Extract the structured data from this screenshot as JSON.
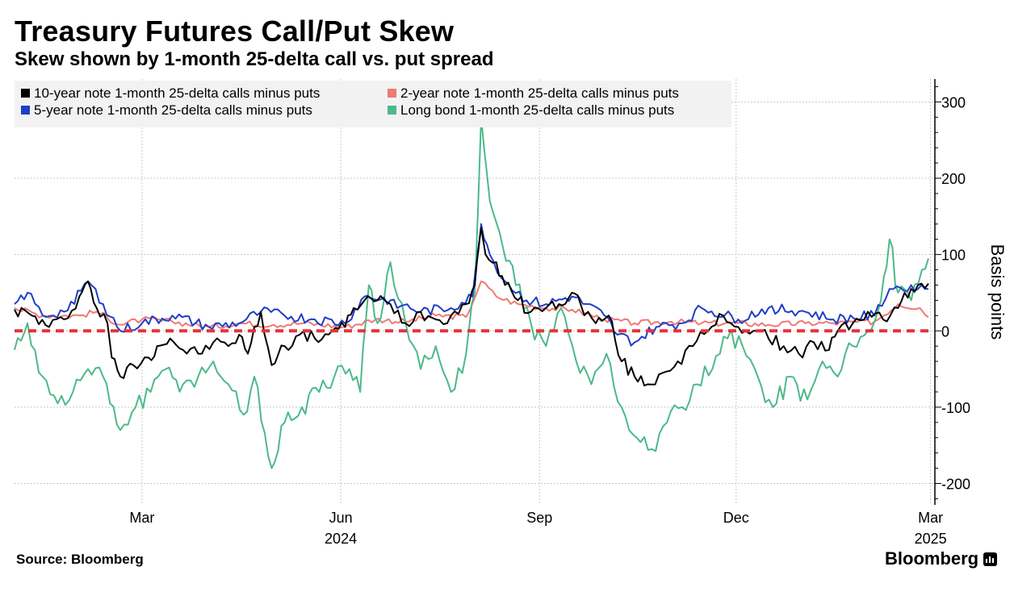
{
  "title": "Treasury Futures Call/Put Skew",
  "subtitle": "Skew shown by 1-month 25-delta call vs. put spread",
  "source": "Source: Bloomberg",
  "brand": "Bloomberg",
  "colors": {
    "ten_year": "#000000",
    "two_year": "#ee7a74",
    "five_year": "#1f3fc4",
    "long_bond": "#4cb98a",
    "zero_line": "#e5323a",
    "legend_bg": "#f2f2f2",
    "grid": "#c8c8c8"
  },
  "chart_data": {
    "type": "line",
    "x_start": "2024-01-02",
    "x_end": "2025-02-28",
    "frequency": "business days (interpolated from readings)",
    "ylim": [
      -228,
      330
    ],
    "yticks": [
      -200,
      -100,
      0,
      100,
      200,
      300
    ],
    "ylabel": "Basis points",
    "x_ticks": [
      {
        "date": "2024-03-01",
        "label": "Mar"
      },
      {
        "date": "2024-06-01",
        "label": "Jun"
      },
      {
        "date": "2024-09-01",
        "label": "Sep"
      },
      {
        "date": "2024-12-01",
        "label": "Dec"
      },
      {
        "date": "2025-03-01",
        "label": "Mar"
      }
    ],
    "x_year_labels": [
      {
        "date": "2024-06-01",
        "label": "2024"
      },
      {
        "date": "2025-03-01",
        "label": "2025"
      }
    ],
    "grid": true,
    "legend_position": "top-left",
    "reference_line": {
      "y": 0,
      "style": "dashed"
    },
    "series": [
      {
        "name": "10-year note 1-month 25-delta calls minus puts",
        "color_key": "ten_year",
        "points": [
          [
            "2024-01-02",
            28
          ],
          [
            "2024-01-10",
            20
          ],
          [
            "2024-01-18",
            5
          ],
          [
            "2024-01-25",
            15
          ],
          [
            "2024-02-01",
            45
          ],
          [
            "2024-02-05",
            65
          ],
          [
            "2024-02-09",
            30
          ],
          [
            "2024-02-14",
            10
          ],
          [
            "2024-02-16",
            -35
          ],
          [
            "2024-02-20",
            -60
          ],
          [
            "2024-02-26",
            -45
          ],
          [
            "2024-03-04",
            -35
          ],
          [
            "2024-03-08",
            -20
          ],
          [
            "2024-03-14",
            -10
          ],
          [
            "2024-03-20",
            -25
          ],
          [
            "2024-03-27",
            -30
          ],
          [
            "2024-04-03",
            -15
          ],
          [
            "2024-04-10",
            -20
          ],
          [
            "2024-04-15",
            -5
          ],
          [
            "2024-04-19",
            -30
          ],
          [
            "2024-04-25",
            25
          ],
          [
            "2024-04-30",
            -45
          ],
          [
            "2024-05-06",
            -20
          ],
          [
            "2024-05-13",
            -5
          ],
          [
            "2024-05-20",
            -10
          ],
          [
            "2024-05-28",
            0
          ],
          [
            "2024-06-03",
            5
          ],
          [
            "2024-06-07",
            30
          ],
          [
            "2024-06-12",
            40
          ],
          [
            "2024-06-18",
            40
          ],
          [
            "2024-06-24",
            35
          ],
          [
            "2024-07-01",
            10
          ],
          [
            "2024-07-08",
            25
          ],
          [
            "2024-07-15",
            15
          ],
          [
            "2024-07-22",
            20
          ],
          [
            "2024-07-29",
            35
          ],
          [
            "2024-08-02",
            60
          ],
          [
            "2024-08-05",
            135
          ],
          [
            "2024-08-07",
            100
          ],
          [
            "2024-08-12",
            90
          ],
          [
            "2024-08-16",
            60
          ],
          [
            "2024-08-22",
            40
          ],
          [
            "2024-08-28",
            25
          ],
          [
            "2024-09-04",
            30
          ],
          [
            "2024-09-10",
            35
          ],
          [
            "2024-09-16",
            50
          ],
          [
            "2024-09-20",
            35
          ],
          [
            "2024-09-27",
            10
          ],
          [
            "2024-10-03",
            20
          ],
          [
            "2024-10-09",
            -40
          ],
          [
            "2024-10-15",
            -60
          ],
          [
            "2024-10-21",
            -70
          ],
          [
            "2024-10-28",
            -55
          ],
          [
            "2024-11-04",
            -40
          ],
          [
            "2024-11-11",
            -20
          ],
          [
            "2024-11-18",
            0
          ],
          [
            "2024-11-25",
            20
          ],
          [
            "2024-12-02",
            5
          ],
          [
            "2024-12-09",
            0
          ],
          [
            "2024-12-16",
            -10
          ],
          [
            "2024-12-23",
            -20
          ],
          [
            "2024-12-30",
            -30
          ],
          [
            "2025-01-06",
            -15
          ],
          [
            "2025-01-13",
            -25
          ],
          [
            "2025-01-17",
            0
          ],
          [
            "2025-01-24",
            10
          ],
          [
            "2025-01-31",
            25
          ],
          [
            "2025-02-07",
            15
          ],
          [
            "2025-02-14",
            30
          ],
          [
            "2025-02-20",
            55
          ],
          [
            "2025-02-28",
            62
          ]
        ]
      },
      {
        "name": "2-year note 1-month 25-delta calls minus puts",
        "color_key": "two_year",
        "points": [
          [
            "2024-01-02",
            30
          ],
          [
            "2024-01-15",
            20
          ],
          [
            "2024-02-01",
            20
          ],
          [
            "2024-02-09",
            25
          ],
          [
            "2024-02-20",
            8
          ],
          [
            "2024-03-01",
            15
          ],
          [
            "2024-03-15",
            12
          ],
          [
            "2024-04-01",
            5
          ],
          [
            "2024-04-15",
            10
          ],
          [
            "2024-05-01",
            8
          ],
          [
            "2024-05-15",
            10
          ],
          [
            "2024-06-03",
            5
          ],
          [
            "2024-06-17",
            15
          ],
          [
            "2024-07-01",
            12
          ],
          [
            "2024-07-15",
            20
          ],
          [
            "2024-07-29",
            18
          ],
          [
            "2024-08-05",
            65
          ],
          [
            "2024-08-12",
            45
          ],
          [
            "2024-08-22",
            35
          ],
          [
            "2024-09-04",
            30
          ],
          [
            "2024-09-16",
            28
          ],
          [
            "2024-10-01",
            15
          ],
          [
            "2024-10-15",
            10
          ],
          [
            "2024-11-01",
            12
          ],
          [
            "2024-11-15",
            10
          ],
          [
            "2024-12-02",
            10
          ],
          [
            "2024-12-16",
            8
          ],
          [
            "2025-01-02",
            10
          ],
          [
            "2025-01-15",
            10
          ],
          [
            "2025-02-03",
            12
          ],
          [
            "2025-02-14",
            35
          ],
          [
            "2025-02-24",
            30
          ],
          [
            "2025-02-28",
            18
          ]
        ]
      },
      {
        "name": "5-year note 1-month 25-delta calls minus puts",
        "color_key": "five_year",
        "points": [
          [
            "2024-01-02",
            35
          ],
          [
            "2024-01-08",
            50
          ],
          [
            "2024-01-15",
            20
          ],
          [
            "2024-01-25",
            25
          ],
          [
            "2024-02-05",
            65
          ],
          [
            "2024-02-12",
            35
          ],
          [
            "2024-02-20",
            0
          ],
          [
            "2024-03-01",
            10
          ],
          [
            "2024-03-15",
            20
          ],
          [
            "2024-04-01",
            5
          ],
          [
            "2024-04-15",
            10
          ],
          [
            "2024-04-25",
            25
          ],
          [
            "2024-05-06",
            20
          ],
          [
            "2024-05-20",
            15
          ],
          [
            "2024-06-03",
            10
          ],
          [
            "2024-06-12",
            45
          ],
          [
            "2024-06-24",
            40
          ],
          [
            "2024-07-08",
            25
          ],
          [
            "2024-07-22",
            30
          ],
          [
            "2024-08-01",
            45
          ],
          [
            "2024-08-05",
            140
          ],
          [
            "2024-08-09",
            100
          ],
          [
            "2024-08-16",
            65
          ],
          [
            "2024-08-26",
            40
          ],
          [
            "2024-09-04",
            35
          ],
          [
            "2024-09-16",
            45
          ],
          [
            "2024-10-01",
            20
          ],
          [
            "2024-10-07",
            -5
          ],
          [
            "2024-10-15",
            -15
          ],
          [
            "2024-10-25",
            5
          ],
          [
            "2024-11-06",
            10
          ],
          [
            "2024-11-15",
            30
          ],
          [
            "2024-12-02",
            15
          ],
          [
            "2024-12-16",
            30
          ],
          [
            "2025-01-02",
            25
          ],
          [
            "2025-01-15",
            15
          ],
          [
            "2025-02-03",
            20
          ],
          [
            "2025-02-10",
            55
          ],
          [
            "2025-02-20",
            60
          ],
          [
            "2025-02-28",
            55
          ]
        ]
      },
      {
        "name": "Long bond 1-month 25-delta calls minus puts",
        "color_key": "long_bond",
        "points": [
          [
            "2024-01-02",
            -25
          ],
          [
            "2024-01-08",
            10
          ],
          [
            "2024-01-15",
            -60
          ],
          [
            "2024-01-22",
            -95
          ],
          [
            "2024-01-29",
            -80
          ],
          [
            "2024-02-05",
            -50
          ],
          [
            "2024-02-12",
            -60
          ],
          [
            "2024-02-20",
            -130
          ],
          [
            "2024-02-27",
            -100
          ],
          [
            "2024-03-05",
            -80
          ],
          [
            "2024-03-12",
            -50
          ],
          [
            "2024-03-20",
            -70
          ],
          [
            "2024-03-27",
            -60
          ],
          [
            "2024-04-03",
            -40
          ],
          [
            "2024-04-10",
            -70
          ],
          [
            "2024-04-17",
            -110
          ],
          [
            "2024-04-22",
            -60
          ],
          [
            "2024-04-30",
            -180
          ],
          [
            "2024-05-06",
            -120
          ],
          [
            "2024-05-14",
            -100
          ],
          [
            "2024-05-22",
            -80
          ],
          [
            "2024-05-29",
            -60
          ],
          [
            "2024-06-05",
            -50
          ],
          [
            "2024-06-10",
            -80
          ],
          [
            "2024-06-14",
            60
          ],
          [
            "2024-06-18",
            10
          ],
          [
            "2024-06-24",
            90
          ],
          [
            "2024-07-01",
            10
          ],
          [
            "2024-07-08",
            -50
          ],
          [
            "2024-07-15",
            -20
          ],
          [
            "2024-07-22",
            -80
          ],
          [
            "2024-07-29",
            -30
          ],
          [
            "2024-08-02",
            50
          ],
          [
            "2024-08-05",
            280
          ],
          [
            "2024-08-09",
            170
          ],
          [
            "2024-08-15",
            110
          ],
          [
            "2024-08-21",
            60
          ],
          [
            "2024-08-28",
            10
          ],
          [
            "2024-09-04",
            -20
          ],
          [
            "2024-09-11",
            30
          ],
          [
            "2024-09-18",
            -40
          ],
          [
            "2024-09-25",
            -70
          ],
          [
            "2024-10-02",
            -30
          ],
          [
            "2024-10-09",
            -100
          ],
          [
            "2024-10-16",
            -140
          ],
          [
            "2024-10-23",
            -155
          ],
          [
            "2024-10-30",
            -120
          ],
          [
            "2024-11-06",
            -100
          ],
          [
            "2024-11-13",
            -70
          ],
          [
            "2024-11-20",
            -50
          ],
          [
            "2024-11-27",
            -10
          ],
          [
            "2024-12-04",
            -20
          ],
          [
            "2024-12-11",
            -60
          ],
          [
            "2024-12-18",
            -100
          ],
          [
            "2024-12-26",
            -60
          ],
          [
            "2025-01-03",
            -90
          ],
          [
            "2025-01-10",
            -40
          ],
          [
            "2025-01-17",
            -60
          ],
          [
            "2025-01-24",
            -20
          ],
          [
            "2025-01-31",
            0
          ],
          [
            "2025-02-06",
            40
          ],
          [
            "2025-02-10",
            120
          ],
          [
            "2025-02-14",
            50
          ],
          [
            "2025-02-20",
            40
          ],
          [
            "2025-02-25",
            80
          ],
          [
            "2025-02-28",
            95
          ]
        ]
      }
    ]
  }
}
